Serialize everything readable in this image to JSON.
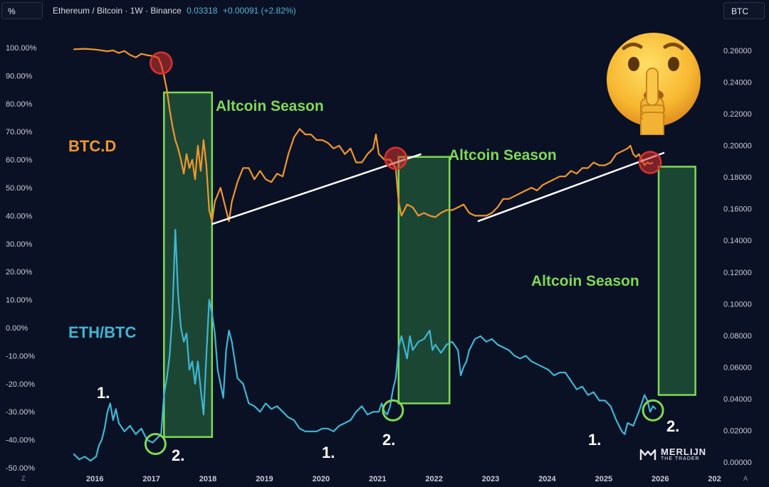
{
  "header": {
    "pct_button": "%",
    "symbol": "Ethereum / Bitcoin · 1W · Binance",
    "price": "0.03318",
    "change": "+0.00091 (+2.82%)",
    "currency_button": "BTC"
  },
  "corners": {
    "left": "Z",
    "right": "A"
  },
  "annotations": {
    "btcd_label": "BTC.D",
    "ethbtc_label": "ETH/BTC",
    "altseason_1": "Altcoin Season",
    "altseason_2": "Altcoin Season",
    "altseason_3": "Altcoin Season",
    "markers": [
      "1.",
      "2.",
      "1.",
      "2.",
      "1.",
      "2."
    ]
  },
  "brand": {
    "line1": "MERLIJN",
    "line2": "THE TRADER"
  },
  "colors": {
    "background": "#0b1124",
    "btcd": "#f0962e",
    "ethbtc": "#3fb6d3",
    "season_fill": "#1e4d36",
    "season_border": "#7ed957",
    "season_text": "#7ed957",
    "trendline": "#ffffff",
    "red_circle": "#d9322e",
    "green_circle": "#7ed957",
    "axis_text": "#c9ccd6"
  },
  "chart_data": {
    "type": "line",
    "x_axis_ticks": [
      "2016",
      "2017",
      "2018",
      "2019",
      "2020",
      "2021",
      "2022",
      "2023",
      "2024",
      "2025",
      "2026",
      "202"
    ],
    "left_axis_ticks": [
      "100.00%",
      "90.00%",
      "80.00%",
      "70.00%",
      "60.00%",
      "50.00%",
      "40.00%",
      "30.00%",
      "20.00%",
      "10.00%",
      "0.00%",
      "-10.00%",
      "-20.00%",
      "-30.00%",
      "-40.00%",
      "-50.00%"
    ],
    "right_axis_ticks": [
      "0.26000",
      "0.24000",
      "0.22000",
      "0.20000",
      "0.18000",
      "0.16000",
      "0.14000",
      "0.12000",
      "0.10000",
      "0.08000",
      "0.06000",
      "0.04000",
      "0.02000",
      "0.00000"
    ],
    "left_axis_range": [
      -50,
      100
    ],
    "right_axis_range": [
      0,
      0.26
    ],
    "x_range": [
      2015.45,
      2027.0
    ],
    "series": [
      {
        "name": "BTC.D",
        "axis": "left",
        "points": [
          [
            2015.6,
            99.4
          ],
          [
            2015.8,
            99.6
          ],
          [
            2016.0,
            99.3
          ],
          [
            2016.2,
            98.7
          ],
          [
            2016.3,
            99.0
          ],
          [
            2016.4,
            98.1
          ],
          [
            2016.5,
            98.8
          ],
          [
            2016.6,
            97.4
          ],
          [
            2016.7,
            96.5
          ],
          [
            2016.8,
            97.8
          ],
          [
            2016.9,
            97.3
          ],
          [
            2017.0,
            97.0
          ],
          [
            2017.1,
            96.4
          ],
          [
            2017.15,
            94.0
          ],
          [
            2017.2,
            90.0
          ],
          [
            2017.25,
            85.0
          ],
          [
            2017.3,
            78.0
          ],
          [
            2017.35,
            72.0
          ],
          [
            2017.4,
            67.0
          ],
          [
            2017.45,
            64.0
          ],
          [
            2017.5,
            60.0
          ],
          [
            2017.55,
            55.0
          ],
          [
            2017.6,
            62.0
          ],
          [
            2017.65,
            57.0
          ],
          [
            2017.7,
            60.0
          ],
          [
            2017.75,
            53.0
          ],
          [
            2017.8,
            65.0
          ],
          [
            2017.85,
            56.0
          ],
          [
            2017.9,
            67.0
          ],
          [
            2017.95,
            58.0
          ],
          [
            2018.0,
            42.0
          ],
          [
            2018.05,
            38.0
          ],
          [
            2018.1,
            45.0
          ],
          [
            2018.2,
            50.0
          ],
          [
            2018.3,
            42.0
          ],
          [
            2018.35,
            38.0
          ],
          [
            2018.4,
            45.0
          ],
          [
            2018.5,
            52.0
          ],
          [
            2018.6,
            57.0
          ],
          [
            2018.7,
            57.0
          ],
          [
            2018.8,
            53.0
          ],
          [
            2018.9,
            56.0
          ],
          [
            2019.0,
            53.0
          ],
          [
            2019.1,
            52.0
          ],
          [
            2019.2,
            55.0
          ],
          [
            2019.3,
            54.0
          ],
          [
            2019.4,
            62.0
          ],
          [
            2019.5,
            68.0
          ],
          [
            2019.6,
            71.0
          ],
          [
            2019.7,
            69.0
          ],
          [
            2019.8,
            69.0
          ],
          [
            2019.9,
            67.0
          ],
          [
            2020.0,
            67.0
          ],
          [
            2020.1,
            66.0
          ],
          [
            2020.2,
            64.0
          ],
          [
            2020.3,
            65.0
          ],
          [
            2020.4,
            62.0
          ],
          [
            2020.5,
            64.0
          ],
          [
            2020.6,
            59.0
          ],
          [
            2020.7,
            59.0
          ],
          [
            2020.8,
            62.0
          ],
          [
            2020.9,
            64.0
          ],
          [
            2020.95,
            69.0
          ],
          [
            2021.0,
            62.0
          ],
          [
            2021.1,
            60.0
          ],
          [
            2021.2,
            60.0
          ],
          [
            2021.3,
            57.0
          ],
          [
            2021.35,
            45.0
          ],
          [
            2021.4,
            40.0
          ],
          [
            2021.5,
            44.0
          ],
          [
            2021.6,
            43.0
          ],
          [
            2021.7,
            40.0
          ],
          [
            2021.8,
            41.0
          ],
          [
            2021.9,
            40.0
          ],
          [
            2022.0,
            39.5
          ],
          [
            2022.1,
            41.0
          ],
          [
            2022.2,
            42.0
          ],
          [
            2022.3,
            42.0
          ],
          [
            2022.4,
            43.0
          ],
          [
            2022.5,
            44.0
          ],
          [
            2022.6,
            41.0
          ],
          [
            2022.7,
            40.0
          ],
          [
            2022.8,
            40.0
          ],
          [
            2022.9,
            40.0
          ],
          [
            2023.0,
            41.0
          ],
          [
            2023.1,
            43.0
          ],
          [
            2023.2,
            46.0
          ],
          [
            2023.3,
            46.0
          ],
          [
            2023.4,
            47.0
          ],
          [
            2023.5,
            48.0
          ],
          [
            2023.6,
            49.0
          ],
          [
            2023.7,
            50.0
          ],
          [
            2023.8,
            49.0
          ],
          [
            2023.9,
            51.0
          ],
          [
            2024.0,
            52.0
          ],
          [
            2024.1,
            53.0
          ],
          [
            2024.2,
            54.0
          ],
          [
            2024.3,
            54.0
          ],
          [
            2024.4,
            56.0
          ],
          [
            2024.5,
            55.0
          ],
          [
            2024.6,
            57.0
          ],
          [
            2024.7,
            57.0
          ],
          [
            2024.8,
            59.0
          ],
          [
            2024.9,
            58.0
          ],
          [
            2025.0,
            58.0
          ],
          [
            2025.1,
            59.0
          ],
          [
            2025.2,
            62.0
          ],
          [
            2025.3,
            63.0
          ],
          [
            2025.4,
            64.0
          ],
          [
            2025.45,
            65.0
          ],
          [
            2025.5,
            62.0
          ],
          [
            2025.55,
            61.0
          ],
          [
            2025.6,
            62.0
          ],
          [
            2025.7,
            58.0
          ],
          [
            2025.75,
            59.0
          ],
          [
            2025.8,
            58.5
          ],
          [
            2025.85,
            59.0
          ]
        ]
      },
      {
        "name": "ETH/BTC",
        "axis": "left",
        "points": [
          [
            2015.6,
            -45.0
          ],
          [
            2015.7,
            -47.0
          ],
          [
            2015.8,
            -46.0
          ],
          [
            2015.9,
            -47.5
          ],
          [
            2016.0,
            -46.0
          ],
          [
            2016.05,
            -42.0
          ],
          [
            2016.1,
            -40.0
          ],
          [
            2016.15,
            -36.0
          ],
          [
            2016.2,
            -30.0
          ],
          [
            2016.25,
            -27.0
          ],
          [
            2016.3,
            -33.0
          ],
          [
            2016.35,
            -29.0
          ],
          [
            2016.4,
            -34.0
          ],
          [
            2016.5,
            -37.0
          ],
          [
            2016.6,
            -35.0
          ],
          [
            2016.7,
            -38.0
          ],
          [
            2016.8,
            -36.0
          ],
          [
            2016.9,
            -40.0
          ],
          [
            2017.0,
            -41.0
          ],
          [
            2017.1,
            -39.0
          ],
          [
            2017.15,
            -38.0
          ],
          [
            2017.2,
            -24.0
          ],
          [
            2017.25,
            -18.0
          ],
          [
            2017.3,
            -10.0
          ],
          [
            2017.35,
            5.0
          ],
          [
            2017.4,
            35.0
          ],
          [
            2017.45,
            12.0
          ],
          [
            2017.5,
            0.0
          ],
          [
            2017.55,
            -5.0
          ],
          [
            2017.6,
            -2.0
          ],
          [
            2017.65,
            -15.0
          ],
          [
            2017.7,
            -12.0
          ],
          [
            2017.75,
            -20.0
          ],
          [
            2017.8,
            -12.0
          ],
          [
            2017.85,
            -22.0
          ],
          [
            2017.9,
            -31.0
          ],
          [
            2017.95,
            -10.0
          ],
          [
            2018.0,
            10.0
          ],
          [
            2018.05,
            5.0
          ],
          [
            2018.1,
            -2.0
          ],
          [
            2018.15,
            -15.0
          ],
          [
            2018.25,
            -25.0
          ],
          [
            2018.3,
            -8.0
          ],
          [
            2018.35,
            -1.0
          ],
          [
            2018.4,
            -5.0
          ],
          [
            2018.5,
            -18.0
          ],
          [
            2018.6,
            -20.0
          ],
          [
            2018.7,
            -27.0
          ],
          [
            2018.8,
            -28.0
          ],
          [
            2018.9,
            -30.0
          ],
          [
            2019.0,
            -27.0
          ],
          [
            2019.1,
            -29.0
          ],
          [
            2019.2,
            -28.0
          ],
          [
            2019.3,
            -30.0
          ],
          [
            2019.4,
            -32.0
          ],
          [
            2019.5,
            -33.0
          ],
          [
            2019.6,
            -36.0
          ],
          [
            2019.7,
            -37.0
          ],
          [
            2019.8,
            -37.0
          ],
          [
            2019.9,
            -37.0
          ],
          [
            2020.0,
            -36.0
          ],
          [
            2020.1,
            -36.0
          ],
          [
            2020.2,
            -37.0
          ],
          [
            2020.3,
            -35.0
          ],
          [
            2020.4,
            -34.0
          ],
          [
            2020.5,
            -33.0
          ],
          [
            2020.6,
            -30.0
          ],
          [
            2020.7,
            -28.0
          ],
          [
            2020.8,
            -31.0
          ],
          [
            2020.9,
            -30.0
          ],
          [
            2021.0,
            -30.0
          ],
          [
            2021.05,
            -27.0
          ],
          [
            2021.1,
            -30.0
          ],
          [
            2021.15,
            -31.0
          ],
          [
            2021.2,
            -28.0
          ],
          [
            2021.25,
            -22.0
          ],
          [
            2021.3,
            -18.0
          ],
          [
            2021.35,
            -7.0
          ],
          [
            2021.4,
            -3.0
          ],
          [
            2021.5,
            -11.0
          ],
          [
            2021.55,
            -3.0
          ],
          [
            2021.6,
            -8.0
          ],
          [
            2021.7,
            -5.0
          ],
          [
            2021.8,
            -4.0
          ],
          [
            2021.9,
            -1.0
          ],
          [
            2021.95,
            -8.0
          ],
          [
            2022.0,
            -6.0
          ],
          [
            2022.1,
            -9.0
          ],
          [
            2022.2,
            -6.0
          ],
          [
            2022.3,
            -5.0
          ],
          [
            2022.4,
            -8.0
          ],
          [
            2022.45,
            -17.0
          ],
          [
            2022.5,
            -14.0
          ],
          [
            2022.55,
            -12.0
          ],
          [
            2022.6,
            -8.0
          ],
          [
            2022.7,
            -4.0
          ],
          [
            2022.8,
            -3.0
          ],
          [
            2022.9,
            -5.0
          ],
          [
            2023.0,
            -4.0
          ],
          [
            2023.1,
            -6.0
          ],
          [
            2023.2,
            -7.0
          ],
          [
            2023.3,
            -8.0
          ],
          [
            2023.4,
            -10.0
          ],
          [
            2023.5,
            -11.0
          ],
          [
            2023.6,
            -10.0
          ],
          [
            2023.7,
            -12.0
          ],
          [
            2023.8,
            -13.0
          ],
          [
            2023.9,
            -14.0
          ],
          [
            2024.0,
            -15.0
          ],
          [
            2024.1,
            -17.0
          ],
          [
            2024.2,
            -16.0
          ],
          [
            2024.3,
            -16.0
          ],
          [
            2024.4,
            -19.0
          ],
          [
            2024.5,
            -22.0
          ],
          [
            2024.6,
            -21.0
          ],
          [
            2024.7,
            -24.0
          ],
          [
            2024.8,
            -23.0
          ],
          [
            2024.9,
            -26.0
          ],
          [
            2025.0,
            -26.0
          ],
          [
            2025.1,
            -28.0
          ],
          [
            2025.2,
            -33.0
          ],
          [
            2025.3,
            -37.0
          ],
          [
            2025.35,
            -38.0
          ],
          [
            2025.4,
            -34.0
          ],
          [
            2025.5,
            -35.0
          ],
          [
            2025.6,
            -30.0
          ],
          [
            2025.7,
            -24.0
          ],
          [
            2025.75,
            -26.0
          ],
          [
            2025.8,
            -30.0
          ],
          [
            2025.85,
            -28.0
          ],
          [
            2025.9,
            -29.0
          ]
        ]
      }
    ],
    "trendlines": [
      {
        "from": [
          2018.05,
          37.0
        ],
        "to": [
          2021.75,
          62.0
        ]
      },
      {
        "from": [
          2022.75,
          38.0
        ],
        "to": [
          2026.05,
          62.5
        ]
      }
    ],
    "altcoin_seasons": [
      {
        "x_start": 2017.2,
        "x_end": 2018.05,
        "y_top": 84.0,
        "y_bottom": -39.0
      },
      {
        "x_start": 2021.35,
        "x_end": 2022.25,
        "y_top": 61.0,
        "y_bottom": -27.0
      },
      {
        "x_start": 2025.95,
        "x_end": 2026.6,
        "y_top": 57.5,
        "y_bottom": -24.0
      }
    ],
    "red_markers": [
      [
        2017.15,
        94.5
      ],
      [
        2021.3,
        60.5
      ],
      [
        2025.8,
        59.0
      ]
    ],
    "green_markers": [
      [
        2017.05,
        -41.5
      ],
      [
        2021.25,
        -29.5
      ],
      [
        2025.85,
        -29.5
      ]
    ]
  }
}
